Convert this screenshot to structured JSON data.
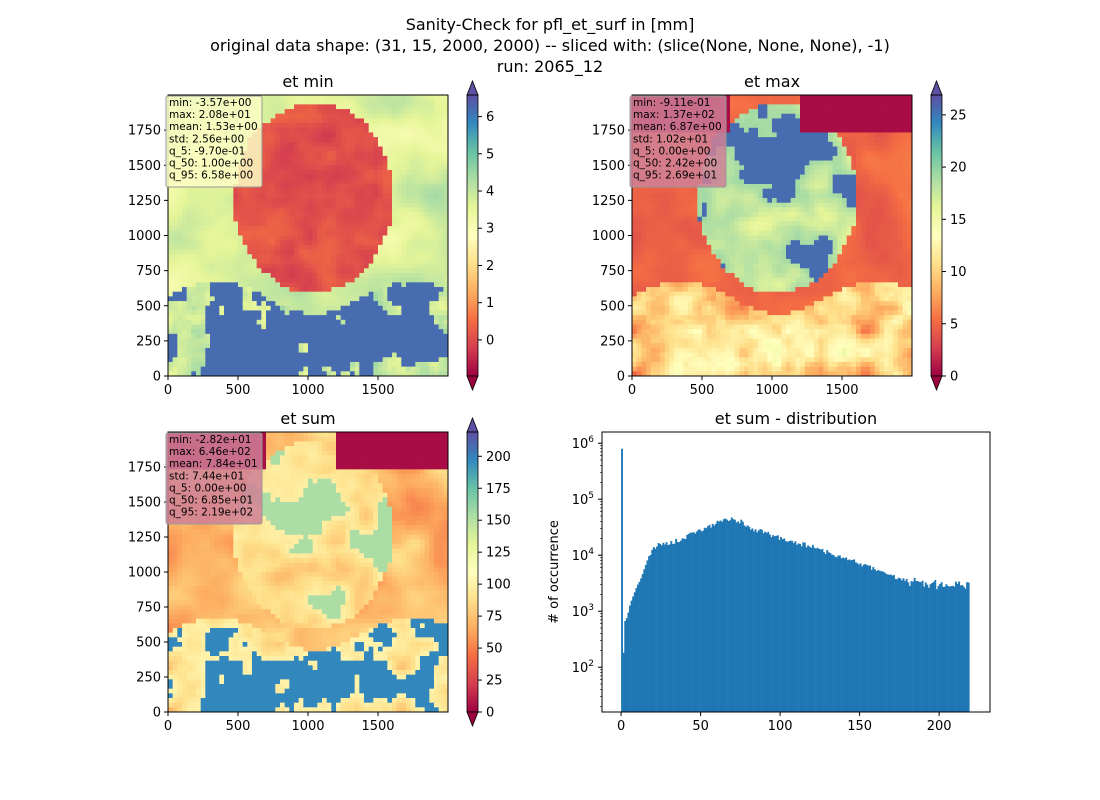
{
  "figure": {
    "title_lines": [
      "Sanity-Check for pfl_et_surf in [mm]",
      "original data shape: (31, 15, 2000, 2000) -- sliced with: (slice(None, None, None), -1)",
      "run: 2065_12"
    ]
  },
  "chart_data": [
    {
      "type": "heatmap",
      "title": "et min",
      "x_ticks": [
        "0",
        "500",
        "1000",
        "1500"
      ],
      "y_ticks": [
        "0",
        "250",
        "500",
        "750",
        "1000",
        "1250",
        "1500",
        "1750"
      ],
      "xlim": [
        0,
        2000
      ],
      "ylim": [
        0,
        2000
      ],
      "colormap": "Spectral",
      "colorbar": {
        "min": -0.97,
        "max": 6.58,
        "ticks": [
          "0",
          "1",
          "2",
          "3",
          "4",
          "5",
          "6"
        ],
        "extend": "both"
      },
      "stats": [
        "min: -3.57e+00",
        "max: 2.08e+01",
        "mean: 1.53e+00",
        "std: 2.56e+00",
        "q_5: -9.70e-01",
        "q_50: 1.00e+00",
        "q_95: 6.58e+00"
      ],
      "stats_box_color": "#fbfdc4"
    },
    {
      "type": "heatmap",
      "title": "et max",
      "x_ticks": [
        "0",
        "500",
        "1000",
        "1500"
      ],
      "y_ticks": [
        "0",
        "250",
        "500",
        "750",
        "1000",
        "1250",
        "1500",
        "1750"
      ],
      "xlim": [
        0,
        2000
      ],
      "ylim": [
        0,
        2000
      ],
      "colormap": "Spectral",
      "colorbar": {
        "min": 0,
        "max": 26.9,
        "ticks": [
          "0",
          "5",
          "10",
          "15",
          "20",
          "25"
        ],
        "extend": "both"
      },
      "stats": [
        "min: -9.11e-01",
        "max: 1.37e+02",
        "mean: 6.87e+00",
        "std: 1.02e+01",
        "q_5: 0.00e+00",
        "q_50: 2.42e+00",
        "q_95: 2.69e+01"
      ],
      "stats_box_color": "#cf8097"
    },
    {
      "type": "heatmap",
      "title": "et sum",
      "x_ticks": [
        "0",
        "500",
        "1000",
        "1500"
      ],
      "y_ticks": [
        "0",
        "250",
        "500",
        "750",
        "1000",
        "1250",
        "1500",
        "1750"
      ],
      "xlim": [
        0,
        2000
      ],
      "ylim": [
        0,
        2000
      ],
      "colormap": "Spectral",
      "colorbar": {
        "min": 0,
        "max": 219,
        "ticks": [
          "0",
          "25",
          "50",
          "75",
          "100",
          "125",
          "150",
          "175",
          "200"
        ],
        "extend": "both"
      },
      "stats": [
        "min: -2.82e+01",
        "max: 6.46e+02",
        "mean: 7.84e+01",
        "std: 7.44e+01",
        "q_5: 0.00e+00",
        "q_50: 6.85e+01",
        "q_95: 2.19e+02"
      ],
      "stats_box_color": "#cf8097"
    },
    {
      "type": "bar",
      "subtype": "histogram",
      "title": "et sum - distribution",
      "xlabel": "",
      "ylabel": "# of occurrence",
      "x_ticks": [
        "0",
        "50",
        "100",
        "150",
        "200"
      ],
      "y_log": true,
      "y_ticks": [
        "10^2",
        "10^3",
        "10^4",
        "10^5",
        "10^6"
      ],
      "xlim": [
        -12,
        232
      ],
      "ylim_log10": [
        1.2,
        6.2
      ],
      "color": "#1f77b4",
      "histogram_profile": {
        "x": [
          0,
          0.8,
          2,
          3,
          4,
          5,
          6,
          8,
          10,
          12,
          14,
          16,
          18,
          20,
          22,
          25,
          30,
          35,
          40,
          45,
          50,
          55,
          60,
          65,
          70,
          75,
          80,
          90,
          100,
          110,
          120,
          130,
          140,
          150,
          160,
          170,
          180,
          190,
          200,
          210,
          219
        ],
        "log10_count": [
          5.9,
          1.5,
          2.8,
          2.85,
          2.9,
          3.05,
          3.15,
          3.3,
          3.45,
          3.55,
          3.7,
          3.9,
          4.0,
          4.1,
          4.15,
          4.2,
          4.22,
          4.25,
          4.3,
          4.4,
          4.45,
          4.5,
          4.58,
          4.62,
          4.66,
          4.6,
          4.5,
          4.4,
          4.3,
          4.22,
          4.15,
          4.05,
          3.95,
          3.85,
          3.75,
          3.62,
          3.55,
          3.5,
          3.45,
          3.5,
          3.5
        ]
      }
    }
  ]
}
